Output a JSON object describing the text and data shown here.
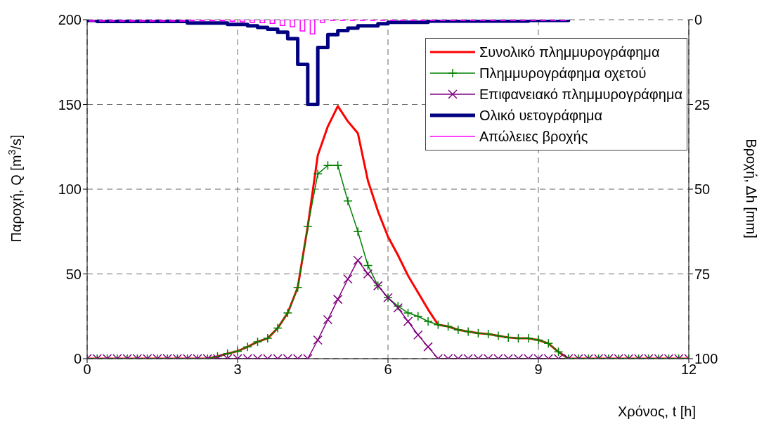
{
  "chart_data": {
    "type": "line",
    "xlabel": "Χρόνος, t [h]",
    "ylabel": "Παροχή, Q [m$^{3}$/s]",
    "y2label": "Βροχή, Δh [mm]",
    "x": [
      0,
      0.2,
      0.4,
      0.6,
      0.8,
      1,
      1.2,
      1.4,
      1.6,
      1.8,
      2,
      2.2,
      2.4,
      2.6,
      2.8,
      3,
      3.2,
      3.4,
      3.6,
      3.8,
      4,
      4.2,
      4.4,
      4.6,
      4.8,
      5,
      5.2,
      5.4,
      5.6,
      5.8,
      6,
      6.2,
      6.4,
      6.6,
      6.8,
      7,
      7.2,
      7.4,
      7.6,
      7.8,
      8,
      8.2,
      8.4,
      8.6,
      8.8,
      9,
      9.2,
      9.4,
      9.6,
      9.8,
      10,
      10.2,
      10.4,
      10.6,
      10.8,
      11,
      11.2,
      11.4,
      11.6,
      11.8,
      12
    ],
    "xlim": [
      0,
      12
    ],
    "xticks": [
      0,
      3,
      6,
      9,
      12
    ],
    "ylim": [
      0,
      200
    ],
    "yticks": [
      0,
      50,
      100,
      150,
      200
    ],
    "y2lim": [
      100,
      0
    ],
    "y2ticks": [
      0,
      25,
      50,
      75,
      100
    ],
    "grid": true,
    "legend": "top right",
    "line_style": "solid",
    "series": [
      {
        "name": "Συνολικό πλημμυρογράφημα",
        "color": "#ff0000",
        "marker": "none",
        "values": [
          0,
          0,
          0,
          0,
          0,
          0,
          0,
          0,
          0,
          0,
          0,
          0,
          0,
          1.4,
          3,
          4.4,
          7,
          10,
          12,
          18,
          27,
          42,
          78,
          120,
          137,
          149,
          140,
          133,
          105,
          87,
          72,
          61,
          49,
          39,
          29,
          20,
          19,
          17,
          16,
          15,
          14.5,
          13.5,
          12.5,
          12,
          12,
          11,
          9,
          4,
          0,
          0,
          0,
          0,
          0,
          0,
          0,
          0,
          0,
          0,
          0,
          0,
          0
        ]
      },
      {
        "name": "Πλημμυρογράφημα οχετού",
        "color": "#008000",
        "marker": "cross",
        "values": [
          0,
          0,
          0,
          0,
          0,
          0,
          0,
          0,
          0,
          0,
          0,
          0,
          0,
          1.4,
          3,
          4.4,
          7,
          10,
          12,
          18,
          27,
          42,
          78,
          109,
          114,
          114,
          93,
          75,
          55,
          43,
          36,
          31,
          27,
          25,
          22,
          20,
          19,
          17,
          16,
          15,
          14.5,
          13.5,
          12.5,
          12,
          12,
          11,
          9,
          4,
          0,
          0,
          0,
          0,
          0,
          0,
          0,
          0,
          0,
          0,
          0,
          0,
          0
        ]
      },
      {
        "name": "Επιφανειακό πλημμυρογράφημα",
        "color": "#800080",
        "marker": "x",
        "values": [
          0,
          0,
          0,
          0,
          0,
          0,
          0,
          0,
          0,
          0,
          0,
          0,
          0,
          0,
          0,
          0,
          0,
          0,
          0,
          0,
          0,
          0,
          0,
          11,
          23,
          35,
          47,
          58,
          50,
          43,
          36,
          30,
          22,
          14,
          7,
          0,
          0,
          0,
          0,
          0,
          0,
          0,
          0,
          0,
          0,
          0,
          0,
          0,
          0,
          0,
          0,
          0,
          0,
          0,
          0,
          0,
          0,
          0,
          0,
          0,
          0
        ]
      },
      {
        "name": "Ολικό υετογράφημα",
        "color": "#000080",
        "type": "step",
        "axis": "y2",
        "marker": "none",
        "x": [
          0,
          0.2,
          0.4,
          0.6,
          0.8,
          1,
          1.2,
          1.4,
          1.6,
          1.8,
          2,
          2.2,
          2.4,
          2.6,
          2.8,
          3,
          3.2,
          3.4,
          3.6,
          3.8,
          4,
          4.2,
          4.4,
          4.6,
          4.8,
          5,
          5.2,
          5.4,
          5.6,
          5.8,
          6,
          6.2,
          6.4,
          6.6,
          6.8,
          7,
          7.2,
          7.4,
          7.6,
          7.8,
          8,
          8.2,
          8.4,
          8.6,
          8.8,
          9,
          9.2,
          9.4,
          9.6
        ],
        "values": [
          0.2,
          0.5,
          0.5,
          0.5,
          0.5,
          0.5,
          0.5,
          0.5,
          0.5,
          0.5,
          1,
          1,
          1,
          1,
          1.4,
          1.4,
          1.8,
          2.3,
          2.8,
          3.7,
          5.6,
          13.2,
          25,
          8.2,
          4.4,
          3.2,
          2.5,
          1.8,
          1.8,
          1.2,
          0.8,
          0.8,
          0.8,
          0.8,
          0.4,
          0.4,
          0.4,
          0.4,
          0.4,
          0.4,
          0.4,
          0.4,
          0.4,
          0.4,
          0.2,
          0.2,
          0.2,
          0.2,
          0
        ]
      },
      {
        "name": "Απώλειες βροχής",
        "color": "#ff00ff",
        "type": "bar",
        "axis": "y2",
        "x": [
          0.1,
          0.3,
          0.5,
          0.7,
          0.9,
          1.1,
          1.3,
          1.5,
          1.7,
          1.9,
          2.1,
          2.3,
          2.5,
          2.7,
          2.9,
          3.1,
          3.3,
          3.5,
          3.7,
          3.9,
          4.1,
          4.3,
          4.5,
          4.7,
          4.9,
          5.1,
          5.3,
          5.5,
          5.7,
          5.9,
          6.1,
          6.3,
          6.5,
          6.7,
          6.9,
          7.1,
          7.3,
          7.5,
          7.7,
          7.9,
          8.1,
          8.3,
          8.5,
          8.7,
          8.9,
          9.1,
          9.3,
          9.5
        ],
        "values": [
          0.4,
          0.4,
          0.4,
          0.4,
          0.4,
          0.4,
          0.4,
          0.4,
          0.4,
          0.4,
          0.3,
          0.3,
          0.3,
          0.3,
          0.5,
          0.6,
          0.8,
          0.9,
          1.1,
          1.7,
          2.1,
          3.3,
          4.2,
          0.8,
          0.2,
          0.2,
          0.2,
          0.2,
          0.2,
          0.2,
          0.2,
          0.2,
          0.2,
          0.2,
          0.2,
          0.2,
          0.2,
          0.2,
          0.2,
          0.2,
          0.2,
          0.2,
          0.2,
          0.2,
          0.2,
          0.2,
          0.2,
          0.2
        ]
      }
    ]
  }
}
